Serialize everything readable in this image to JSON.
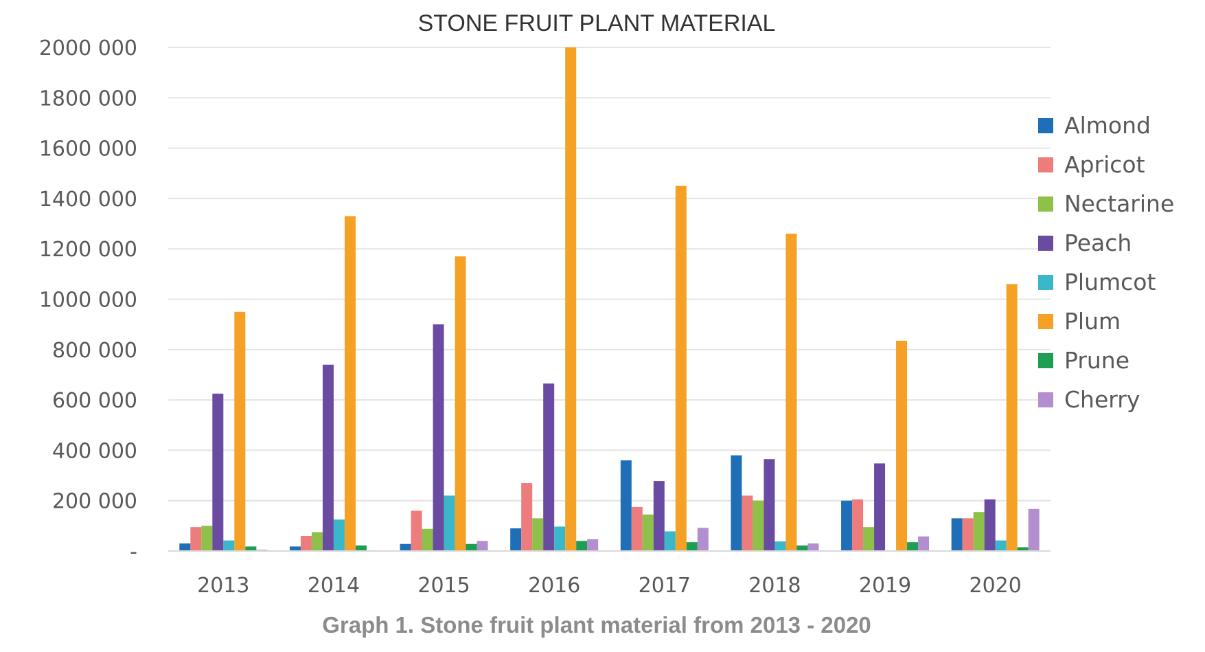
{
  "chart_data": {
    "type": "bar",
    "title": "STONE FRUIT PLANT MATERIAL",
    "categories": [
      "2013",
      "2014",
      "2015",
      "2016",
      "2017",
      "2018",
      "2019",
      "2020"
    ],
    "ylim": [
      0,
      2000000
    ],
    "yticks": [
      0,
      200000,
      400000,
      600000,
      800000,
      1000000,
      1200000,
      1400000,
      1600000,
      1800000,
      2000000
    ],
    "ytick_labels": [
      "-",
      "200 000",
      "400 000",
      "600 000",
      "800 000",
      "1000 000",
      "1200 000",
      "1400 000",
      "1600 000",
      "1800 000",
      "2000 000"
    ],
    "grid": true,
    "legend_position": "right",
    "series": [
      {
        "name": "Almond",
        "color": "#1f6fb8",
        "values": [
          30000,
          18000,
          28000,
          90000,
          360000,
          380000,
          200000,
          130000
        ]
      },
      {
        "name": "Apricot",
        "color": "#ed7d7d",
        "values": [
          95000,
          60000,
          160000,
          270000,
          175000,
          220000,
          205000,
          130000
        ]
      },
      {
        "name": "Nectarine",
        "color": "#8fc04a",
        "values": [
          100000,
          75000,
          88000,
          130000,
          145000,
          200000,
          95000,
          155000
        ]
      },
      {
        "name": "Peach",
        "color": "#6a4ba2",
        "values": [
          625000,
          740000,
          900000,
          665000,
          278000,
          365000,
          348000,
          205000
        ]
      },
      {
        "name": "Plumcot",
        "color": "#3ab8c9",
        "values": [
          42000,
          125000,
          220000,
          97000,
          78000,
          38000,
          2000,
          42000
        ]
      },
      {
        "name": "Plum",
        "color": "#f4a126",
        "values": [
          950000,
          1330000,
          1170000,
          2000000,
          1450000,
          1260000,
          835000,
          1060000
        ]
      },
      {
        "name": "Prune",
        "color": "#1d9e52",
        "values": [
          18000,
          22000,
          28000,
          40000,
          35000,
          22000,
          35000,
          15000
        ]
      },
      {
        "name": "Cherry",
        "color": "#b38fcf",
        "values": [
          5000,
          3000,
          40000,
          47000,
          92000,
          30000,
          58000,
          167000
        ]
      }
    ]
  },
  "caption": "Graph 1.  Stone fruit plant material from 2013 - 2020"
}
